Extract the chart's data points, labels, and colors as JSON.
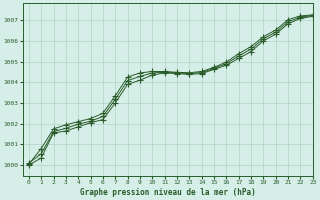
{
  "xlabel": "Graphe pression niveau de la mer (hPa)",
  "xlim": [
    -0.5,
    23
  ],
  "ylim": [
    999.5,
    1007.8
  ],
  "yticks": [
    1000,
    1001,
    1002,
    1003,
    1004,
    1005,
    1006,
    1007
  ],
  "xticks": [
    0,
    1,
    2,
    3,
    4,
    5,
    6,
    7,
    8,
    9,
    10,
    11,
    12,
    13,
    14,
    15,
    16,
    17,
    18,
    19,
    20,
    21,
    22,
    23
  ],
  "bg_color": "#d5eee8",
  "grid_color": "#b0d4c8",
  "line_color": "#2a5c2a",
  "s1_x": [
    0,
    1,
    2,
    3,
    4,
    5,
    6,
    7,
    8,
    9,
    10,
    11,
    12,
    13,
    14,
    15,
    16,
    17,
    18,
    19,
    20,
    21,
    22,
    23
  ],
  "s1_y": [
    1000.0,
    1000.35,
    1001.55,
    1001.65,
    1001.85,
    1002.05,
    1002.2,
    1003.0,
    1003.9,
    1004.1,
    1004.35,
    1004.45,
    1004.42,
    1004.38,
    1004.42,
    1004.62,
    1004.82,
    1005.15,
    1005.48,
    1006.0,
    1006.32,
    1006.82,
    1007.08,
    1007.18
  ],
  "s2_x": [
    0,
    1,
    2,
    3,
    4,
    5,
    6,
    7,
    8,
    9,
    10,
    11,
    12,
    13,
    14,
    15,
    16,
    17,
    18,
    19,
    20,
    21,
    22,
    23
  ],
  "s2_y": [
    1000.05,
    1000.8,
    1001.75,
    1001.95,
    1002.1,
    1002.25,
    1002.5,
    1003.35,
    1004.25,
    1004.45,
    1004.52,
    1004.52,
    1004.48,
    1004.46,
    1004.52,
    1004.72,
    1004.98,
    1005.38,
    1005.72,
    1006.2,
    1006.52,
    1007.02,
    1007.2,
    1007.25
  ],
  "s3_x": [
    0,
    1,
    2,
    3,
    4,
    5,
    6,
    7,
    8,
    9,
    10,
    11,
    12,
    13,
    14,
    15,
    16,
    17,
    18,
    19,
    20,
    21,
    22,
    23
  ],
  "s3_y": [
    1000.1,
    1000.55,
    1001.62,
    1001.78,
    1001.98,
    1002.12,
    1002.35,
    1003.18,
    1004.08,
    1004.28,
    1004.45,
    1004.48,
    1004.45,
    1004.42,
    1004.47,
    1004.67,
    1004.9,
    1005.27,
    1005.6,
    1006.1,
    1006.42,
    1006.92,
    1007.14,
    1007.22
  ]
}
